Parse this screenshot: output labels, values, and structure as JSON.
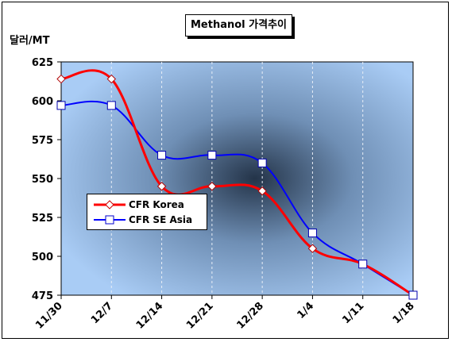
{
  "chart_title": "Methanol 가격추이",
  "unit_label": "달러/MT",
  "chart_data": {
    "type": "line",
    "title": "Methanol 가격추이",
    "ylabel": "달러/MT",
    "xlabel": "",
    "categories": [
      "11/30",
      "12/7",
      "12/14",
      "12/21",
      "12/28",
      "1/4",
      "1/11",
      "1/18"
    ],
    "ylim": [
      475,
      625
    ],
    "yticks": [
      475,
      500,
      525,
      550,
      575,
      600,
      625
    ],
    "grid": "vertical",
    "legend_position": "left",
    "series": [
      {
        "name": "CFR Korea",
        "values": [
          614,
          614,
          545,
          545,
          542,
          505,
          495,
          475
        ],
        "color": "#ff0000",
        "marker": "diamond"
      },
      {
        "name": "CFR SE Asia",
        "values": [
          597,
          597,
          565,
          565,
          560,
          515,
          495,
          475
        ],
        "color": "#0000ff",
        "marker": "square"
      }
    ]
  }
}
